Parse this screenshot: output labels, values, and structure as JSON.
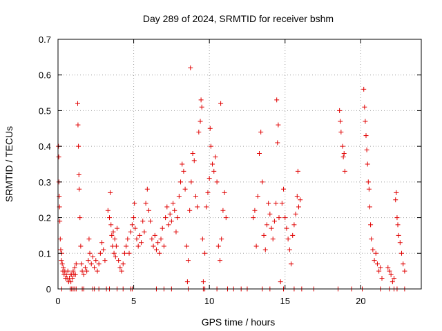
{
  "chart_data": {
    "type": "scatter",
    "title": "Day 289 of 2024, SRMTID for receiver bshm",
    "xlabel": "GPS time / hours",
    "ylabel": "SRMTID / TECUs",
    "xlim": [
      0,
      24
    ],
    "ylim": [
      0,
      0.7
    ],
    "xticks": [
      0,
      5,
      10,
      15,
      20
    ],
    "yticks": [
      0,
      0.1,
      0.2,
      0.3,
      0.4,
      0.5,
      0.6,
      0.7
    ],
    "xtick_labels": [
      "0",
      "5",
      "10",
      "15",
      "20"
    ],
    "ytick_labels": [
      "0",
      "0.1",
      "0.2",
      "0.3",
      "0.4",
      "0.5",
      "0.6",
      "0.7"
    ],
    "grid": true,
    "marker": "+",
    "color": "#e00000",
    "series": [
      {
        "name": "SRMTID",
        "points": [
          [
            0.03,
            0.4
          ],
          [
            0.05,
            0.37
          ],
          [
            0.06,
            0.3
          ],
          [
            0.08,
            0.26
          ],
          [
            0.1,
            0.23
          ],
          [
            0.12,
            0.19
          ],
          [
            0.15,
            0.14
          ],
          [
            0.18,
            0.11
          ],
          [
            0.22,
            0.08
          ],
          [
            0.25,
            0.1
          ],
          [
            0.28,
            0.07
          ],
          [
            0.32,
            0.05
          ],
          [
            0.35,
            0.06
          ],
          [
            0.4,
            0.04
          ],
          [
            0.45,
            0.05
          ],
          [
            0.5,
            0.03
          ],
          [
            0.55,
            0.04
          ],
          [
            0.6,
            0.03
          ],
          [
            0.65,
            0.05
          ],
          [
            0.7,
            0.02
          ],
          [
            0.75,
            0.03
          ],
          [
            0.8,
            0.04
          ],
          [
            0.85,
            0.02
          ],
          [
            0.9,
            0.04
          ],
          [
            0.95,
            0.03
          ],
          [
            1.0,
            0.05
          ],
          [
            1.05,
            0.04
          ],
          [
            1.1,
            0.06
          ],
          [
            1.15,
            0.04
          ],
          [
            1.2,
            0.07
          ],
          [
            1.3,
            0.52
          ],
          [
            1.32,
            0.46
          ],
          [
            1.35,
            0.4
          ],
          [
            1.38,
            0.32
          ],
          [
            1.4,
            0.28
          ],
          [
            1.45,
            0.2
          ],
          [
            1.5,
            0.12
          ],
          [
            1.55,
            0.07
          ],
          [
            1.6,
            0.05
          ],
          [
            1.7,
            0.04
          ],
          [
            1.8,
            0.06
          ],
          [
            1.9,
            0.05
          ],
          [
            2.0,
            0.08
          ],
          [
            2.05,
            0.14
          ],
          [
            2.1,
            0.1
          ],
          [
            2.2,
            0.07
          ],
          [
            2.3,
            0.09
          ],
          [
            2.4,
            0.06
          ],
          [
            2.5,
            0.08
          ],
          [
            2.6,
            0.05
          ],
          [
            2.7,
            0.07
          ],
          [
            2.8,
            0.1
          ],
          [
            2.9,
            0.13
          ],
          [
            3.0,
            0.11
          ],
          [
            3.1,
            0.08
          ],
          [
            3.3,
            0.22
          ],
          [
            3.4,
            0.2
          ],
          [
            3.45,
            0.27
          ],
          [
            3.5,
            0.18
          ],
          [
            3.55,
            0.15
          ],
          [
            3.6,
            0.12
          ],
          [
            3.65,
            0.16
          ],
          [
            3.7,
            0.1
          ],
          [
            3.75,
            0.14
          ],
          [
            3.8,
            0.09
          ],
          [
            3.85,
            0.12
          ],
          [
            3.9,
            0.17
          ],
          [
            4.0,
            0.08
          ],
          [
            4.1,
            0.06
          ],
          [
            4.2,
            0.05
          ],
          [
            4.3,
            0.07
          ],
          [
            4.4,
            0.1
          ],
          [
            4.5,
            0.12
          ],
          [
            4.6,
            0.14
          ],
          [
            4.7,
            0.1
          ],
          [
            4.8,
            0.16
          ],
          [
            4.9,
            0.18
          ],
          [
            5.0,
            0.2
          ],
          [
            5.05,
            0.24
          ],
          [
            5.1,
            0.17
          ],
          [
            5.2,
            0.14
          ],
          [
            5.3,
            0.12
          ],
          [
            5.4,
            0.15
          ],
          [
            5.5,
            0.13
          ],
          [
            5.6,
            0.19
          ],
          [
            5.7,
            0.16
          ],
          [
            5.8,
            0.24
          ],
          [
            5.9,
            0.28
          ],
          [
            6.0,
            0.22
          ],
          [
            6.1,
            0.19
          ],
          [
            6.2,
            0.14
          ],
          [
            6.3,
            0.12
          ],
          [
            6.4,
            0.15
          ],
          [
            6.5,
            0.11
          ],
          [
            6.6,
            0.13
          ],
          [
            6.7,
            0.1
          ],
          [
            6.8,
            0.14
          ],
          [
            6.9,
            0.17
          ],
          [
            7.0,
            0.12
          ],
          [
            7.1,
            0.2
          ],
          [
            7.2,
            0.23
          ],
          [
            7.3,
            0.18
          ],
          [
            7.4,
            0.21
          ],
          [
            7.5,
            0.19
          ],
          [
            7.6,
            0.24
          ],
          [
            7.7,
            0.22
          ],
          [
            7.8,
            0.16
          ],
          [
            7.9,
            0.2
          ],
          [
            8.0,
            0.26
          ],
          [
            8.1,
            0.3
          ],
          [
            8.2,
            0.35
          ],
          [
            8.3,
            0.33
          ],
          [
            8.4,
            0.28
          ],
          [
            8.5,
            0.12
          ],
          [
            8.55,
            0.02
          ],
          [
            8.6,
            0.08
          ],
          [
            8.7,
            0.22
          ],
          [
            8.75,
            0.62
          ],
          [
            8.8,
            0.3
          ],
          [
            8.9,
            0.38
          ],
          [
            9.0,
            0.36
          ],
          [
            9.1,
            0.26
          ],
          [
            9.2,
            0.23
          ],
          [
            9.3,
            0.44
          ],
          [
            9.4,
            0.47
          ],
          [
            9.45,
            0.53
          ],
          [
            9.5,
            0.51
          ],
          [
            9.55,
            0.14
          ],
          [
            9.6,
            0.02
          ],
          [
            9.7,
            0.1
          ],
          [
            9.8,
            0.23
          ],
          [
            9.9,
            0.27
          ],
          [
            10.0,
            0.31
          ],
          [
            10.05,
            0.45
          ],
          [
            10.1,
            0.4
          ],
          [
            10.2,
            0.35
          ],
          [
            10.3,
            0.33
          ],
          [
            10.4,
            0.37
          ],
          [
            10.5,
            0.3
          ],
          [
            10.6,
            0.12
          ],
          [
            10.7,
            0.08
          ],
          [
            10.75,
            0.52
          ],
          [
            10.8,
            0.14
          ],
          [
            10.9,
            0.22
          ],
          [
            11.0,
            0.27
          ],
          [
            11.1,
            0.2
          ],
          [
            12.9,
            0.2
          ],
          [
            13.0,
            0.22
          ],
          [
            13.1,
            0.12
          ],
          [
            13.2,
            0.26
          ],
          [
            13.3,
            0.38
          ],
          [
            13.4,
            0.44
          ],
          [
            13.5,
            0.3
          ],
          [
            13.6,
            0.15
          ],
          [
            13.7,
            0.11
          ],
          [
            13.8,
            0.18
          ],
          [
            13.9,
            0.24
          ],
          [
            14.0,
            0.21
          ],
          [
            14.1,
            0.17
          ],
          [
            14.2,
            0.14
          ],
          [
            14.3,
            0.19
          ],
          [
            14.4,
            0.24
          ],
          [
            14.45,
            0.53
          ],
          [
            14.5,
            0.41
          ],
          [
            14.55,
            0.46
          ],
          [
            14.6,
            0.2
          ],
          [
            14.7,
            0.02
          ],
          [
            14.8,
            0.24
          ],
          [
            14.9,
            0.28
          ],
          [
            15.0,
            0.2
          ],
          [
            15.1,
            0.17
          ],
          [
            15.2,
            0.14
          ],
          [
            15.3,
            0.11
          ],
          [
            15.4,
            0.07
          ],
          [
            15.5,
            0.15
          ],
          [
            15.6,
            0.18
          ],
          [
            15.7,
            0.21
          ],
          [
            15.8,
            0.26
          ],
          [
            15.85,
            0.33
          ],
          [
            15.9,
            0.23
          ],
          [
            16.0,
            0.25
          ],
          [
            18.6,
            0.5
          ],
          [
            18.65,
            0.47
          ],
          [
            18.7,
            0.44
          ],
          [
            18.8,
            0.4
          ],
          [
            18.85,
            0.37
          ],
          [
            18.9,
            0.38
          ],
          [
            18.95,
            0.33
          ],
          [
            20.2,
            0.56
          ],
          [
            20.25,
            0.51
          ],
          [
            20.3,
            0.47
          ],
          [
            20.35,
            0.43
          ],
          [
            20.4,
            0.39
          ],
          [
            20.45,
            0.35
          ],
          [
            20.5,
            0.3
          ],
          [
            20.55,
            0.28
          ],
          [
            20.6,
            0.23
          ],
          [
            20.65,
            0.18
          ],
          [
            20.7,
            0.14
          ],
          [
            20.8,
            0.11
          ],
          [
            20.9,
            0.08
          ],
          [
            21.0,
            0.1
          ],
          [
            21.1,
            0.07
          ],
          [
            21.2,
            0.05
          ],
          [
            21.3,
            0.06
          ],
          [
            21.4,
            0.03
          ],
          [
            21.8,
            0.06
          ],
          [
            21.9,
            0.05
          ],
          [
            22.0,
            0.04
          ],
          [
            22.1,
            0.02
          ],
          [
            22.2,
            0.03
          ],
          [
            22.3,
            0.25
          ],
          [
            22.35,
            0.27
          ],
          [
            22.4,
            0.2
          ],
          [
            22.45,
            0.18
          ],
          [
            22.5,
            0.15
          ],
          [
            22.6,
            0.13
          ],
          [
            22.7,
            0.1
          ],
          [
            22.8,
            0.07
          ],
          [
            22.9,
            0.05
          ],
          [
            0.25,
            0.0
          ],
          [
            0.8,
            0.0
          ],
          [
            0.9,
            0.0
          ],
          [
            1.0,
            0.0
          ],
          [
            1.1,
            0.0
          ],
          [
            1.2,
            0.0
          ],
          [
            1.6,
            0.0
          ],
          [
            1.7,
            0.0
          ],
          [
            2.3,
            0.0
          ],
          [
            2.4,
            0.0
          ],
          [
            2.7,
            0.0
          ],
          [
            3.2,
            0.0
          ],
          [
            3.4,
            0.0
          ],
          [
            3.9,
            0.0
          ],
          [
            4.3,
            0.0
          ],
          [
            4.8,
            0.0
          ],
          [
            4.9,
            0.0
          ],
          [
            6.5,
            0.0
          ],
          [
            7.0,
            0.0
          ],
          [
            7.5,
            0.0
          ],
          [
            8.6,
            0.0
          ],
          [
            9.6,
            0.0
          ],
          [
            9.7,
            0.0
          ],
          [
            10.5,
            0.0
          ],
          [
            11.2,
            0.0
          ],
          [
            11.6,
            0.0
          ],
          [
            12.1,
            0.0
          ],
          [
            12.5,
            0.0
          ],
          [
            13.5,
            0.0
          ],
          [
            14.0,
            0.0
          ],
          [
            14.9,
            0.0
          ],
          [
            15.6,
            0.0
          ],
          [
            16.1,
            0.0
          ],
          [
            16.9,
            0.0
          ],
          [
            18.5,
            0.0
          ],
          [
            19.4,
            0.0
          ],
          [
            20.1,
            0.0
          ],
          [
            21.3,
            0.0
          ],
          [
            21.9,
            0.0
          ],
          [
            22.2,
            0.0
          ],
          [
            22.4,
            0.0
          ],
          [
            22.9,
            0.0
          ]
        ]
      }
    ]
  }
}
